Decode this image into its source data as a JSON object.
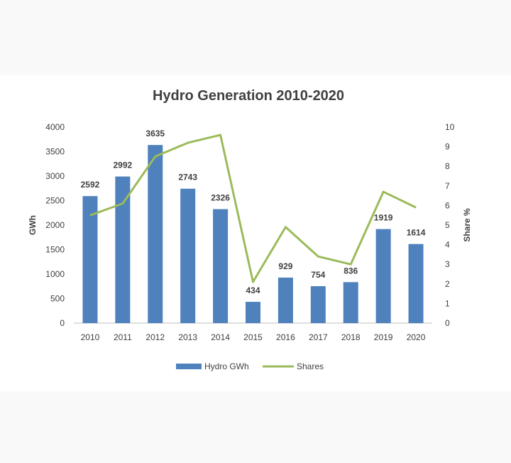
{
  "chart_data": {
    "type": "bar",
    "title": "Hydro Generation 2010-2020",
    "categories": [
      "2010",
      "2011",
      "2012",
      "2013",
      "2014",
      "2015",
      "2016",
      "2017",
      "2018",
      "2019",
      "2020"
    ],
    "series": [
      {
        "name": "Hydro GWh",
        "type": "bar",
        "axis": "left",
        "values": [
          2592,
          2992,
          3635,
          2743,
          2326,
          434,
          929,
          754,
          836,
          1919,
          1614
        ]
      },
      {
        "name": "Shares",
        "type": "line",
        "axis": "right",
        "values": [
          5.5,
          6.1,
          8.5,
          9.2,
          9.6,
          2.1,
          4.9,
          3.4,
          3.0,
          6.7,
          5.9
        ]
      }
    ],
    "ylabel": "GWh",
    "y2label": "Share %",
    "ylim": [
      0,
      4000
    ],
    "y2lim": [
      0,
      10
    ],
    "yticks": [
      "0",
      "500",
      "1000",
      "1500",
      "2000",
      "2500",
      "3000",
      "3500",
      "4000"
    ],
    "y2ticks": [
      "0",
      "1",
      "2",
      "3",
      "4",
      "5",
      "6",
      "7",
      "8",
      "9",
      "10"
    ],
    "data_labels": [
      "2592",
      "2992",
      "3635",
      "2743",
      "2326",
      "434",
      "929",
      "754",
      "836",
      "1919",
      "1614"
    ],
    "legend": [
      "Hydro GWh",
      "Shares"
    ],
    "legend_position": "bottom",
    "colors": {
      "bar": "#4f81bd",
      "line": "#9bbb59",
      "axis": "#bfbfbf",
      "text": "#404040"
    }
  }
}
